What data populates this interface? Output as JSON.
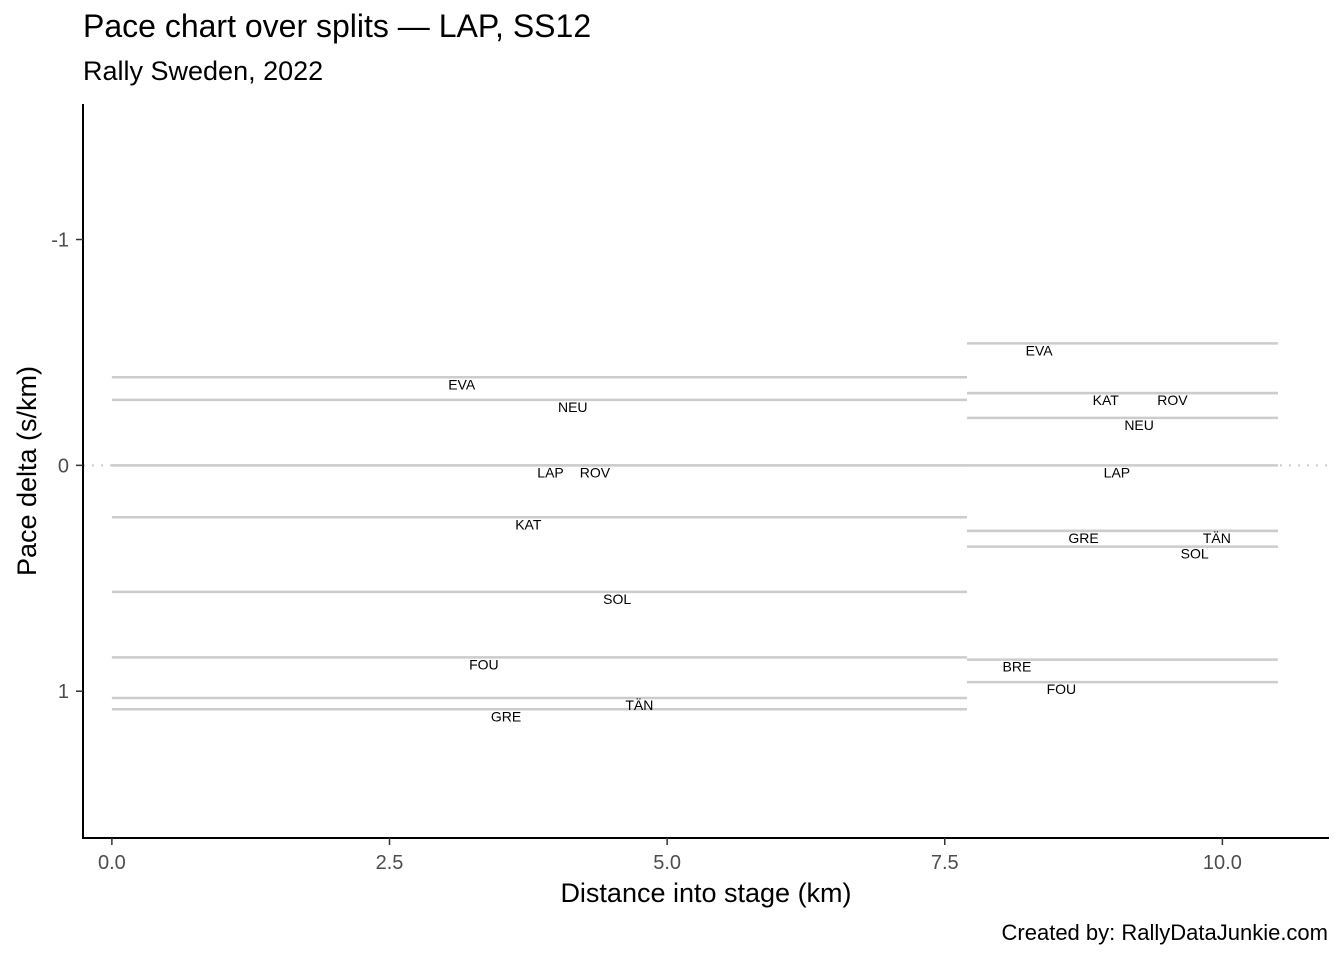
{
  "chart_data": {
    "type": "line",
    "title": "Pace chart over splits — LAP, SS12",
    "subtitle": "Rally Sweden, 2022",
    "caption": "Created by: RallyDataJunkie.com",
    "xlabel": "Distance into stage (km)",
    "ylabel": "Pace delta (s/km)",
    "xlim": [
      -0.26,
      10.96
    ],
    "ylim": [
      1.65,
      -1.6
    ],
    "y_reversed": true,
    "x_ticks": [
      0,
      2.5,
      5,
      7.5,
      10
    ],
    "x_tick_labels": [
      "0.0",
      "2.5",
      "5.0",
      "7.5",
      "10.0"
    ],
    "y_ticks": [
      -1,
      0,
      1
    ],
    "y_tick_labels": [
      "-1",
      "0",
      "1"
    ],
    "reference_line": 0,
    "grid": false,
    "line_color": "#cccccc",
    "splits": [
      {
        "x_start": 0.0,
        "x_end": 7.7
      },
      {
        "x_start": 7.7,
        "x_end": 10.5
      }
    ],
    "series": [
      {
        "name": "EVA",
        "values": [
          -0.39,
          -0.54
        ],
        "label_x": [
          3.15,
          8.35
        ]
      },
      {
        "name": "NEU",
        "values": [
          -0.29,
          -0.21
        ],
        "label_x": [
          4.15,
          9.25
        ]
      },
      {
        "name": "LAP",
        "values": [
          0.0,
          0.0
        ],
        "label_x": [
          3.95,
          9.05
        ]
      },
      {
        "name": "ROV",
        "values": [
          0.0,
          -0.32
        ],
        "label_x": [
          4.35,
          9.55
        ]
      },
      {
        "name": "KAT",
        "values": [
          0.23,
          -0.32
        ],
        "label_x": [
          3.75,
          8.95
        ]
      },
      {
        "name": "SOL",
        "values": [
          0.56,
          0.36
        ],
        "label_x": [
          4.55,
          9.75
        ]
      },
      {
        "name": "FOU",
        "values": [
          0.85,
          0.96
        ],
        "label_x": [
          3.35,
          8.55
        ]
      },
      {
        "name": "GRE",
        "values": [
          1.08,
          0.29
        ],
        "label_x": [
          3.55,
          8.75
        ]
      },
      {
        "name": "TÄN",
        "values": [
          1.03,
          0.29
        ],
        "label_x": [
          4.75,
          9.95
        ]
      },
      {
        "name": "BRE",
        "values": [
          null,
          0.86
        ],
        "label_x": [
          null,
          8.15
        ]
      }
    ]
  }
}
